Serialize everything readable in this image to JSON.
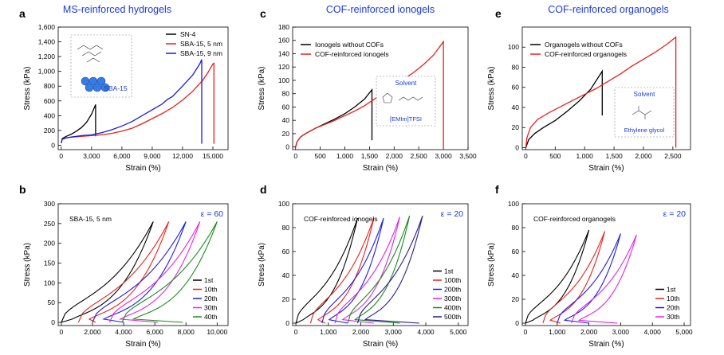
{
  "headers": [
    {
      "text": "MS-reinforced hydrogels"
    },
    {
      "text": "COF-reinforced ionogels"
    },
    {
      "text": "COF-reinforced organogels"
    }
  ],
  "colors": {
    "black": "#000000",
    "red": "#e8201a",
    "blue": "#1a1ae6",
    "purple": "#2a1a8e",
    "magenta": "#e620e6",
    "green": "#1a8a1a",
    "header": "#1a3adb"
  },
  "chart_data": [
    {
      "id": "a",
      "type": "line",
      "panel_label": "a",
      "xlabel": "Strain (%)",
      "ylabel": "Stress (kPa)",
      "xlim": [
        -300,
        16500
      ],
      "ylim": [
        -60,
        1600
      ],
      "xticks": [
        0,
        3000,
        6000,
        9000,
        12000,
        15000
      ],
      "xticklabels": [
        "0",
        "3,000",
        "6,000",
        "9,000",
        "12,000",
        "15,000"
      ],
      "yticks": [
        0,
        200,
        400,
        600,
        800,
        1000,
        1200,
        1400,
        1600
      ],
      "yticklabels": [
        "0",
        "200",
        "400",
        "600",
        "800",
        "1,000",
        "1,200",
        "1,400",
        "1,600"
      ],
      "legend": {
        "position": "top-right"
      },
      "inset": {
        "label": "SBA-15"
      },
      "series": [
        {
          "name": "SN-4",
          "color": "#000000",
          "points": [
            [
              0,
              30
            ],
            [
              100,
              90
            ],
            [
              500,
              120
            ],
            [
              1000,
              150
            ],
            [
              1500,
              190
            ],
            [
              2000,
              240
            ],
            [
              2500,
              310
            ],
            [
              3000,
              420
            ],
            [
              3400,
              550
            ],
            [
              3400,
              120
            ]
          ]
        },
        {
          "name": "SBA-15, 5 nm",
          "color": "#e8201a",
          "points": [
            [
              0,
              30
            ],
            [
              100,
              80
            ],
            [
              500,
              100
            ],
            [
              1000,
              110
            ],
            [
              2000,
              120
            ],
            [
              3000,
              130
            ],
            [
              4000,
              140
            ],
            [
              5000,
              160
            ],
            [
              6000,
              190
            ],
            [
              7000,
              230
            ],
            [
              8000,
              290
            ],
            [
              9000,
              360
            ],
            [
              10000,
              430
            ],
            [
              11000,
              510
            ],
            [
              12000,
              610
            ],
            [
              13000,
              730
            ],
            [
              14000,
              880
            ],
            [
              14500,
              980
            ],
            [
              15000,
              1100
            ],
            [
              15100,
              1110
            ],
            [
              15100,
              20
            ]
          ]
        },
        {
          "name": "SBA-15, 9 nm",
          "color": "#1a1ae6",
          "points": [
            [
              0,
              30
            ],
            [
              100,
              80
            ],
            [
              500,
              100
            ],
            [
              1000,
              110
            ],
            [
              2000,
              130
            ],
            [
              3000,
              140
            ],
            [
              4000,
              170
            ],
            [
              5000,
              210
            ],
            [
              6000,
              260
            ],
            [
              7000,
              320
            ],
            [
              8000,
              400
            ],
            [
              9000,
              480
            ],
            [
              10000,
              560
            ],
            [
              10500,
              620
            ],
            [
              11000,
              660
            ],
            [
              12000,
              800
            ],
            [
              13000,
              950
            ],
            [
              13700,
              1100
            ],
            [
              13900,
              1160
            ],
            [
              13900,
              20
            ]
          ]
        }
      ]
    },
    {
      "id": "c",
      "type": "line",
      "panel_label": "c",
      "xlabel": "Strain (%)",
      "ylabel": "Stress (kPa)",
      "xlim": [
        -60,
        3500
      ],
      "ylim": [
        -4,
        180
      ],
      "xticks": [
        0,
        500,
        1000,
        1500,
        2000,
        2500,
        3000,
        3500
      ],
      "xticklabels": [
        "0",
        "500",
        "1,000",
        "1,500",
        "2,000",
        "2,500",
        "3,000",
        "3,500"
      ],
      "yticks": [
        0,
        20,
        40,
        60,
        80,
        100,
        120,
        140,
        160,
        180
      ],
      "yticklabels": [
        "0",
        "20",
        "40",
        "60",
        "80",
        "100",
        "120",
        "140",
        "160",
        "180"
      ],
      "legend": {
        "position": "top-left"
      },
      "inset": {
        "title": "Solvent",
        "label": "[EMIm]TFSI"
      },
      "series": [
        {
          "name": "Ionogels without COFs",
          "color": "#000000",
          "points": [
            [
              0,
              0
            ],
            [
              30,
              8
            ],
            [
              100,
              15
            ],
            [
              200,
              20
            ],
            [
              400,
              28
            ],
            [
              600,
              35
            ],
            [
              800,
              42
            ],
            [
              1000,
              50
            ],
            [
              1200,
              60
            ],
            [
              1400,
              72
            ],
            [
              1550,
              86
            ],
            [
              1550,
              10
            ]
          ]
        },
        {
          "name": "COF-reinforced ionogels",
          "color": "#e8201a",
          "points": [
            [
              0,
              0
            ],
            [
              30,
              8
            ],
            [
              100,
              15
            ],
            [
              200,
              20
            ],
            [
              400,
              28
            ],
            [
              600,
              34
            ],
            [
              800,
              40
            ],
            [
              1000,
              47
            ],
            [
              1200,
              54
            ],
            [
              1400,
              62
            ],
            [
              1600,
              72
            ],
            [
              1800,
              82
            ],
            [
              2000,
              92
            ],
            [
              2200,
              102
            ],
            [
              2400,
              112
            ],
            [
              2600,
              124
            ],
            [
              2800,
              138
            ],
            [
              3000,
              158
            ],
            [
              3000,
              0
            ]
          ]
        }
      ]
    },
    {
      "id": "e",
      "type": "line",
      "panel_label": "e",
      "xlabel": "Strain (%)",
      "ylabel": "Stress (kPa)",
      "xlim": [
        -60,
        2800
      ],
      "ylim": [
        -2,
        120
      ],
      "xticks": [
        0,
        500,
        1000,
        1500,
        2000,
        2500
      ],
      "xticklabels": [
        "0",
        "500",
        "1,000",
        "1,500",
        "2,000",
        "2,500"
      ],
      "yticks": [
        0,
        20,
        40,
        60,
        80,
        100
      ],
      "yticklabels": [
        "0",
        "20",
        "40",
        "60",
        "80",
        "100"
      ],
      "legend": {
        "position": "top-left"
      },
      "inset": {
        "title": "Solvent",
        "label": "Ethylene glycol"
      },
      "series": [
        {
          "name": "Organogels without COFs",
          "color": "#000000",
          "points": [
            [
              0,
              0
            ],
            [
              50,
              8
            ],
            [
              150,
              14
            ],
            [
              300,
              20
            ],
            [
              500,
              27
            ],
            [
              700,
              36
            ],
            [
              900,
              46
            ],
            [
              1100,
              58
            ],
            [
              1300,
              76
            ],
            [
              1300,
              32
            ]
          ]
        },
        {
          "name": "COF-reinforced organogels",
          "color": "#e8201a",
          "points": [
            [
              0,
              0
            ],
            [
              20,
              10
            ],
            [
              80,
              20
            ],
            [
              200,
              28
            ],
            [
              400,
              35
            ],
            [
              600,
              41
            ],
            [
              800,
              47
            ],
            [
              1000,
              53
            ],
            [
              1200,
              59
            ],
            [
              1400,
              66
            ],
            [
              1600,
              73
            ],
            [
              1800,
              81
            ],
            [
              2000,
              88
            ],
            [
              2200,
              95
            ],
            [
              2400,
              103
            ],
            [
              2550,
              110
            ],
            [
              2550,
              0
            ]
          ]
        }
      ]
    },
    {
      "id": "b",
      "type": "line",
      "panel_label": "b",
      "subtitle": "SBA-15, 5 nm",
      "annotation": "ε = 60",
      "xlabel": "Strain (%)",
      "ylabel": "Stress (kPa)",
      "xlim": [
        -200,
        10700
      ],
      "ylim": [
        -8,
        300
      ],
      "xticks": [
        0,
        2000,
        4000,
        6000,
        8000,
        10000
      ],
      "xticklabels": [
        "0",
        "2,000",
        "4,000",
        "6,000",
        "8,000",
        "10,000"
      ],
      "yticks": [
        0,
        50,
        100,
        150,
        200,
        250,
        300
      ],
      "yticklabels": [
        "0",
        "50",
        "100",
        "150",
        "200",
        "250",
        "300"
      ],
      "legend": {
        "position": "bottom-right"
      },
      "cycle_series": [
        {
          "name": "1st",
          "color": "#000000",
          "offset": 0,
          "peak": 5900,
          "top": 255
        },
        {
          "name": "10th",
          "color": "#e8201a",
          "offset": 1100,
          "peak": 6900,
          "top": 255
        },
        {
          "name": "20th",
          "color": "#1a1ae6",
          "offset": 2000,
          "peak": 8000,
          "top": 255
        },
        {
          "name": "30th",
          "color": "#e620e6",
          "offset": 3100,
          "peak": 8900,
          "top": 255
        },
        {
          "name": "40th",
          "color": "#1a8a1a",
          "offset": 3900,
          "peak": 10000,
          "top": 255
        }
      ]
    },
    {
      "id": "d",
      "type": "line",
      "panel_label": "d",
      "subtitle": "COF-reinforced ionogels",
      "annotation": "ε = 20",
      "xlabel": "Strain (%)",
      "ylabel": "Stress (kPa)",
      "xlim": [
        -100,
        5300
      ],
      "ylim": [
        -2,
        100
      ],
      "xticks": [
        0,
        1000,
        2000,
        3000,
        4000,
        5000
      ],
      "xticklabels": [
        "0",
        "1,000",
        "2,000",
        "3,000",
        "4,000",
        "5,000"
      ],
      "yticks": [
        0,
        20,
        40,
        60,
        80,
        100
      ],
      "yticklabels": [
        "0",
        "20",
        "40",
        "60",
        "80",
        "100"
      ],
      "legend": {
        "position": "bottom-right"
      },
      "cycle_series": [
        {
          "name": "1st",
          "color": "#000000",
          "offset": 0,
          "peak": 1900,
          "top": 88
        },
        {
          "name": "100th",
          "color": "#e8201a",
          "offset": 450,
          "peak": 2400,
          "top": 88
        },
        {
          "name": "200th",
          "color": "#1a1ae6",
          "offset": 800,
          "peak": 2700,
          "top": 88
        },
        {
          "name": "300th",
          "color": "#e620e6",
          "offset": 1200,
          "peak": 3200,
          "top": 89
        },
        {
          "name": "400th",
          "color": "#1a8a1a",
          "offset": 1600,
          "peak": 3500,
          "top": 90
        },
        {
          "name": "500th",
          "color": "#2a1a8e",
          "offset": 1900,
          "peak": 3900,
          "top": 90
        }
      ]
    },
    {
      "id": "f",
      "type": "line",
      "panel_label": "f",
      "subtitle": "COF-reinforced organogels",
      "annotation": "ε = 20",
      "xlabel": "Strain (%)",
      "ylabel": "Stress (kPa)",
      "xlim": [
        -100,
        5200
      ],
      "ylim": [
        -2,
        100
      ],
      "xticks": [
        0,
        1000,
        2000,
        3000,
        4000,
        5000
      ],
      "xticklabels": [
        "0",
        "1,000",
        "2,000",
        "3,000",
        "4,000",
        "5,000"
      ],
      "yticks": [
        0,
        20,
        40,
        60,
        80,
        100
      ],
      "yticklabels": [
        "0",
        "20",
        "40",
        "60",
        "80",
        "100"
      ],
      "legend": {
        "position": "bottom-right"
      },
      "cycle_series": [
        {
          "name": "1st",
          "color": "#000000",
          "offset": 0,
          "peak": 2000,
          "top": 78
        },
        {
          "name": "10th",
          "color": "#e8201a",
          "offset": 550,
          "peak": 2500,
          "top": 77
        },
        {
          "name": "20th",
          "color": "#1a1ae6",
          "offset": 1000,
          "peak": 3000,
          "top": 75
        },
        {
          "name": "30th",
          "color": "#e620e6",
          "offset": 1450,
          "peak": 3500,
          "top": 74
        }
      ]
    }
  ]
}
